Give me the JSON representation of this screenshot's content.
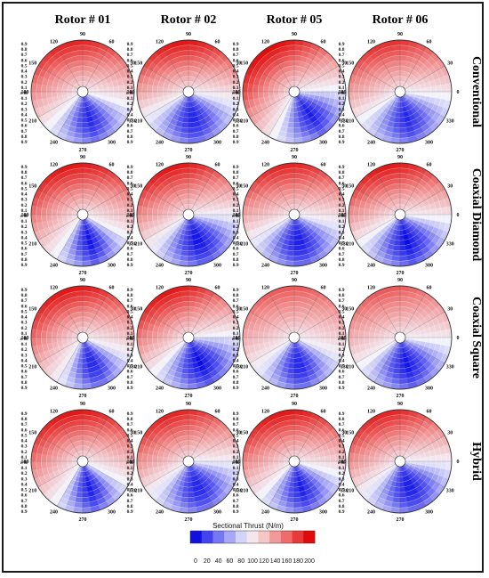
{
  "figure": {
    "column_headers": [
      "Rotor # 01",
      "Rotor # 02",
      "Rotor # 05",
      "Rotor # 06"
    ],
    "row_headers": [
      "Conventional",
      "Coaxial Diamond",
      "Coaxial Square",
      "Hybrid"
    ],
    "colorbar": {
      "title": "Sectional Thrust (N/m)",
      "ticks": [
        "0",
        "20",
        "40",
        "60",
        "80",
        "100",
        "120",
        "140",
        "160",
        "180",
        "200"
      ],
      "colors": [
        "#1010e0",
        "#4444ee",
        "#7777f2",
        "#a8a8f6",
        "#d4d4fa",
        "#f4e6ea",
        "#f6c6c6",
        "#f29a9a",
        "#ee6c6c",
        "#e83a3a",
        "#e00a0a"
      ]
    }
  },
  "chart_data": {
    "type": "heatmap",
    "subtype": "polar contour",
    "angle_ticks": [
      "0",
      "30",
      "60",
      "90",
      "120",
      "150",
      "180",
      "210",
      "240",
      "270",
      "300",
      "330"
    ],
    "radial_tick_labels": [
      "0.9",
      "0.8",
      "0.7",
      "0.6",
      "0.5",
      "0.4",
      "0.3",
      "0.2",
      "0.1",
      "r/R",
      "0.1",
      "0.2",
      "0.3",
      "0.4",
      "0.5",
      "0.6",
      "0.7",
      "0.8",
      "0.9"
    ],
    "radial_axis_label": "r/R",
    "color_scale": {
      "min": 0,
      "max": 200,
      "unit": "N/m"
    },
    "panels": [
      {
        "row": "Conventional",
        "column": "Rotor # 01",
        "peak_thrust": 190,
        "peak_azimuth": 105,
        "high_span": 120,
        "min_thrust": 20
      },
      {
        "row": "Conventional",
        "column": "Rotor # 02",
        "peak_thrust": 195,
        "peak_azimuth": 100,
        "high_span": 110,
        "min_thrust": 15
      },
      {
        "row": "Conventional",
        "column": "Rotor # 05",
        "peak_thrust": 200,
        "peak_azimuth": 125,
        "high_span": 120,
        "min_thrust": 15
      },
      {
        "row": "Conventional",
        "column": "Rotor # 06",
        "peak_thrust": 185,
        "peak_azimuth": 105,
        "high_span": 110,
        "min_thrust": 20
      },
      {
        "row": "Coaxial Diamond",
        "column": "Rotor # 01",
        "peak_thrust": 195,
        "peak_azimuth": 105,
        "high_span": 130,
        "min_thrust": 10
      },
      {
        "row": "Coaxial Diamond",
        "column": "Rotor # 02",
        "peak_thrust": 195,
        "peak_azimuth": 110,
        "high_span": 110,
        "min_thrust": 5
      },
      {
        "row": "Coaxial Diamond",
        "column": "Rotor # 05",
        "peak_thrust": 190,
        "peak_azimuth": 100,
        "high_span": 110,
        "min_thrust": 10
      },
      {
        "row": "Coaxial Diamond",
        "column": "Rotor # 06",
        "peak_thrust": 195,
        "peak_azimuth": 105,
        "high_span": 110,
        "min_thrust": 5
      },
      {
        "row": "Coaxial Square",
        "column": "Rotor # 01",
        "peak_thrust": 195,
        "peak_azimuth": 110,
        "high_span": 130,
        "min_thrust": 15
      },
      {
        "row": "Coaxial Square",
        "column": "Rotor # 02",
        "peak_thrust": 195,
        "peak_azimuth": 115,
        "high_span": 110,
        "min_thrust": 5
      },
      {
        "row": "Coaxial Square",
        "column": "Rotor # 05",
        "peak_thrust": 170,
        "peak_azimuth": 100,
        "high_span": 120,
        "min_thrust": 15
      },
      {
        "row": "Coaxial Square",
        "column": "Rotor # 06",
        "peak_thrust": 170,
        "peak_azimuth": 105,
        "high_span": 110,
        "min_thrust": 10
      },
      {
        "row": "Hybrid",
        "column": "Rotor # 01",
        "peak_thrust": 195,
        "peak_azimuth": 105,
        "high_span": 130,
        "min_thrust": 15
      },
      {
        "row": "Hybrid",
        "column": "Rotor # 02",
        "peak_thrust": 190,
        "peak_azimuth": 110,
        "high_span": 110,
        "min_thrust": 15
      },
      {
        "row": "Hybrid",
        "column": "Rotor # 05",
        "peak_thrust": 195,
        "peak_azimuth": 105,
        "high_span": 120,
        "min_thrust": 15
      },
      {
        "row": "Hybrid",
        "column": "Rotor # 06",
        "peak_thrust": 190,
        "peak_azimuth": 110,
        "high_span": 110,
        "min_thrust": 10
      }
    ]
  }
}
